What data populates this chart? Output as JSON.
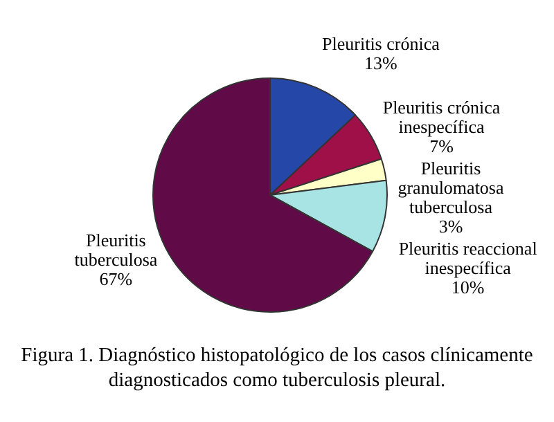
{
  "chart_data": {
    "type": "pie",
    "categories": [
      "Pleuritis crónica",
      "Pleuritis crónica inespecífica",
      "Pleuritis granulomatosa tuberculosa",
      "Pleuritis reaccional inespecífica",
      "Pleuritis tuberculosa"
    ],
    "values": [
      13,
      7,
      3,
      10,
      67
    ],
    "colors": [
      "#2548a8",
      "#a01048",
      "#ffffc8",
      "#a8e4e4",
      "#600a48"
    ],
    "value_labels": [
      "13%",
      "7%",
      "3%",
      "10%",
      "67%"
    ],
    "legend": false,
    "annotations": [
      "Figura 1. Diagnóstico histopatológico de los casos clínicamente diagnosticados como tuberculosis pleural."
    ]
  }
}
